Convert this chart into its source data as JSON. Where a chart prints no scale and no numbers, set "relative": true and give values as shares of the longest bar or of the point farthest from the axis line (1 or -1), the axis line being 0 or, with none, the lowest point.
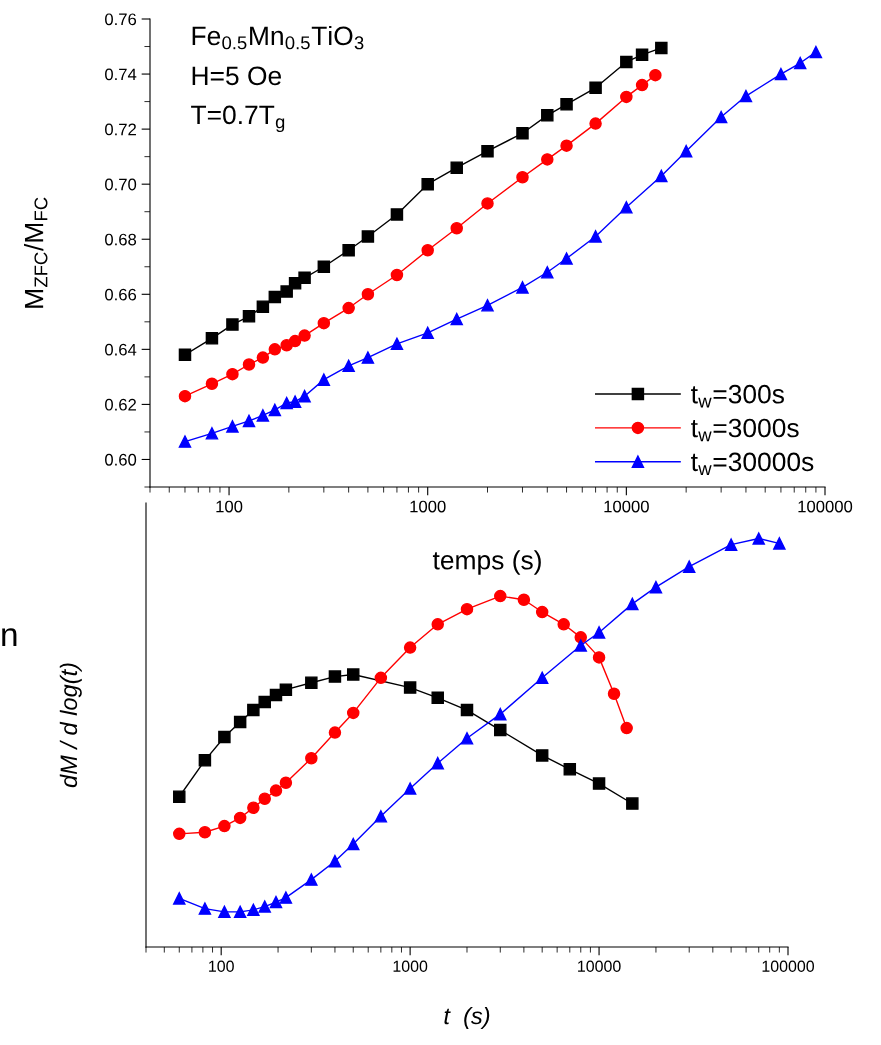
{
  "chart_data": [
    {
      "type": "line",
      "ylabel": "M$_{ZFC}$/M$_{FC}$",
      "xlabel": "temps (s)",
      "annotations": [
        "Fe$_{0.5}$Mn$_{0.5}$TiO$_{3}$",
        "H=5 Oe",
        "T=0.7T$_{g}$"
      ],
      "log": "x",
      "xlim": [
        40,
        100000
      ],
      "xticks": [
        100,
        1000,
        10000,
        100000
      ],
      "ylim": [
        0.59,
        0.76
      ],
      "yticks": [
        {
          "value": 0.6,
          "label": "0.60"
        },
        {
          "value": 0.62,
          "label": "0.62"
        },
        {
          "value": 0.64,
          "label": "0.64"
        },
        {
          "value": 0.66,
          "label": "0.66"
        },
        {
          "value": 0.68,
          "label": "0.68"
        },
        {
          "value": 0.7,
          "label": "0.70"
        },
        {
          "value": 0.72,
          "label": "0.72"
        },
        {
          "value": 0.74,
          "label": "0.74"
        },
        {
          "value": 0.76,
          "label": "0.76"
        }
      ],
      "grid": false,
      "legend": "bottom right",
      "series": [
        {
          "name": "t$_{w}$=300s",
          "color": "#000000",
          "marker": "square",
          "x": [
            60,
            82,
            104,
            126,
            148,
            170,
            195,
            215,
            240,
            300,
            400,
            500,
            700,
            1000,
            1400,
            2000,
            3000,
            4000,
            5000,
            7000,
            10000,
            12000,
            15000
          ],
          "values": [
            0.638,
            0.644,
            0.649,
            0.652,
            0.6555,
            0.659,
            0.661,
            0.664,
            0.666,
            0.67,
            0.676,
            0.681,
            0.689,
            0.7,
            0.706,
            0.712,
            0.7185,
            0.725,
            0.729,
            0.735,
            0.7444,
            0.747,
            0.7495
          ]
        },
        {
          "name": "t$_{w}$=3000s",
          "color": "#ff0000",
          "marker": "circle",
          "x": [
            60,
            82,
            104,
            126,
            148,
            170,
            195,
            215,
            240,
            300,
            400,
            500,
            700,
            1000,
            1400,
            2000,
            3000,
            4000,
            5000,
            7000,
            10000,
            12000,
            14000
          ],
          "values": [
            0.623,
            0.6275,
            0.631,
            0.6345,
            0.637,
            0.64,
            0.6415,
            0.643,
            0.645,
            0.6495,
            0.655,
            0.66,
            0.667,
            0.676,
            0.684,
            0.693,
            0.7025,
            0.709,
            0.714,
            0.722,
            0.7317,
            0.736,
            0.7396
          ]
        },
        {
          "name": "t$_{w}$=30000s",
          "color": "#0000ff",
          "marker": "triangle",
          "x": [
            60,
            82,
            104,
            126,
            148,
            170,
            195,
            215,
            240,
            300,
            400,
            500,
            700,
            1000,
            1400,
            2000,
            3000,
            4000,
            5000,
            7000,
            10000,
            15000,
            20000,
            30000,
            40000,
            60000,
            75000,
            90000
          ],
          "values": [
            0.6065,
            0.6095,
            0.612,
            0.614,
            0.616,
            0.618,
            0.6205,
            0.621,
            0.623,
            0.629,
            0.634,
            0.637,
            0.642,
            0.646,
            0.651,
            0.656,
            0.6625,
            0.668,
            0.673,
            0.681,
            0.6916,
            0.703,
            0.712,
            0.7244,
            0.732,
            0.74,
            0.744,
            0.748
          ]
        }
      ]
    },
    {
      "type": "line",
      "ylabel": "dM / d log(t)",
      "xlabel": "t  (s)",
      "relative": true,
      "annotations": [
        "n"
      ],
      "log": "x",
      "xlim": [
        40,
        100000
      ],
      "xticks": [
        100,
        1000,
        10000,
        100000
      ],
      "tick_labels": "x",
      "grid": false,
      "series": [
        {
          "color": "#000000",
          "marker": "square",
          "x": [
            60,
            82,
            104,
            126,
            148,
            170,
            195,
            220,
            300,
            400,
            500,
            1000,
            1400,
            2000,
            3000,
            5000,
            7000,
            10000,
            15000
          ],
          "values": [
            0.368,
            0.457,
            0.514,
            0.551,
            0.58,
            0.6,
            0.617,
            0.63,
            0.647,
            0.662,
            0.667,
            0.635,
            0.61,
            0.58,
            0.531,
            0.469,
            0.435,
            0.4,
            0.351
          ]
        },
        {
          "color": "#ff0000",
          "marker": "circle",
          "x": [
            60,
            82,
            104,
            126,
            148,
            170,
            195,
            220,
            300,
            400,
            500,
            700,
            1000,
            1400,
            2000,
            3000,
            4000,
            5000,
            6500,
            8000,
            10000,
            12000,
            14000
          ],
          "values": [
            0.277,
            0.281,
            0.296,
            0.316,
            0.341,
            0.363,
            0.383,
            0.402,
            0.462,
            0.525,
            0.573,
            0.659,
            0.733,
            0.79,
            0.827,
            0.859,
            0.85,
            0.82,
            0.79,
            0.758,
            0.709,
            0.62,
            0.536
          ]
        },
        {
          "color": "#0000ff",
          "marker": "triangle",
          "x": [
            60,
            82,
            104,
            126,
            148,
            170,
            195,
            220,
            300,
            400,
            500,
            700,
            1000,
            1400,
            2000,
            3000,
            5000,
            8000,
            10000,
            15000,
            20000,
            30000,
            50000,
            70000,
            90000
          ],
          "values": [
            0.119,
            0.094,
            0.086,
            0.086,
            0.091,
            0.099,
            0.11,
            0.121,
            0.165,
            0.21,
            0.252,
            0.32,
            0.388,
            0.45,
            0.511,
            0.57,
            0.659,
            0.738,
            0.77,
            0.84,
            0.881,
            0.931,
            0.985,
            1.0,
            0.988
          ]
        }
      ]
    }
  ]
}
